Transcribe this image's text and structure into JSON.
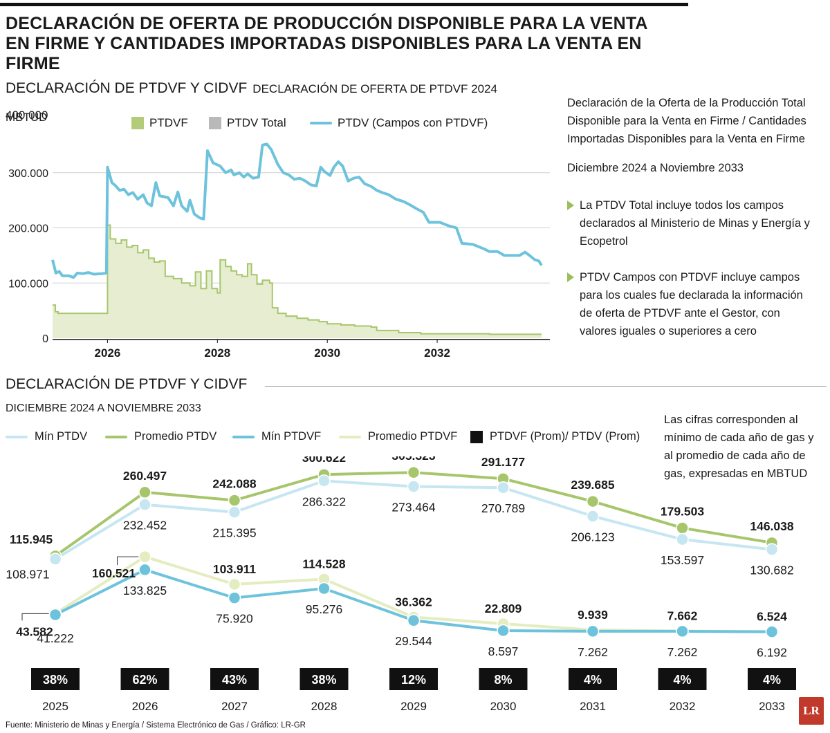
{
  "headline": {
    "line1": "DECLARACIÓN DE OFERTA DE PRODUCCIÓN DISPONIBLE PARA LA VENTA",
    "line2": "EN FIRME Y CANTIDADES IMPORTADAS DISPONIBLES PARA LA VENTA EN FIRME"
  },
  "section1": {
    "title": "DECLARACIÓN DE PTDVF Y CIDVF",
    "subtitle": "DECLARACIÓN DE OFERTA DE PTDVF 2024",
    "unit": "MBTUD",
    "legend": {
      "ptdvf": "PTDVF",
      "ptdv_total": "PTDV Total",
      "ptdv_campos": "PTDV (Campos con PTDVF)"
    }
  },
  "side": {
    "desc": "Declaración de la Oferta de la Producción Total Disponible para la Venta  en Firme / Cantidades Importadas Disponibles para la Venta en Firme",
    "period": "Diciembre 2024 a Noviembre 2033",
    "bullet1": "La PTDV Total incluye todos los campos declarados al Ministerio de Minas y Energía y Ecopetrol",
    "bullet2": "PTDV Campos con PTDVF incluye  campos para los cuales fue declarada la información de oferta de PTDVF ante el Gestor, con valores iguales o superiores a cero"
  },
  "section2": {
    "title": "DECLARACIÓN DE PTDVF Y CIDVF",
    "subtitle": "DICIEMBRE 2024 A NOVIEMBRE 2033",
    "legend": {
      "min_ptdv": "Mín PTDV",
      "prom_ptdv": "Promedio PTDV",
      "min_ptdvf": "Mín PTDVF",
      "prom_ptdvf": "Promedio PTDVF",
      "ratio": "PTDVF (Prom)/ PTDV (Prom)"
    },
    "note": "Las cifras corresponden al mínimo de cada año de gas y al promedio de cada año de gas, expresadas en MBTUD"
  },
  "footer": "Fuente: Ministerio de Minas y Energía / Sistema Electrónico de Gas / Gráfico: LR-GR",
  "logo": "LR",
  "colors": {
    "green": "#a7c66c",
    "green_fill": "#e6edd0",
    "blue": "#6ec3dc",
    "light_blue": "#c6e6f1",
    "light_green": "#e3edbf",
    "black": "#111111"
  },
  "chart_data": [
    {
      "type": "area",
      "title": "DECLARACIÓN DE OFERTA DE PTDVF 2024",
      "ylabel": "MBTUD",
      "ylim": [
        0,
        400000
      ],
      "yticks": [
        0,
        100000,
        200000,
        300000,
        400000
      ],
      "ytick_labels": [
        "0",
        "100.000",
        "200.000",
        "300.000",
        "400.000"
      ],
      "xlim": [
        2025.0,
        2033.9
      ],
      "xticks": [
        2026,
        2028,
        2030,
        2032
      ],
      "xtick_labels": [
        "2026",
        "2028",
        "2030",
        "2032"
      ],
      "series": [
        {
          "name": "PTDVF",
          "style": "step-area",
          "points": [
            [
              2025.0,
              60000
            ],
            [
              2025.05,
              48000
            ],
            [
              2025.1,
              45000
            ],
            [
              2025.95,
              45000
            ],
            [
              2026.0,
              205000
            ],
            [
              2026.05,
              180000
            ],
            [
              2026.15,
              172000
            ],
            [
              2026.25,
              178000
            ],
            [
              2026.35,
              165000
            ],
            [
              2026.45,
              168000
            ],
            [
              2026.55,
              155000
            ],
            [
              2026.65,
              160000
            ],
            [
              2026.75,
              145000
            ],
            [
              2026.85,
              138000
            ],
            [
              2026.95,
              140000
            ],
            [
              2027.05,
              112000
            ],
            [
              2027.2,
              108000
            ],
            [
              2027.35,
              100000
            ],
            [
              2027.5,
              95000
            ],
            [
              2027.6,
              120000
            ],
            [
              2027.7,
              90000
            ],
            [
              2027.8,
              122000
            ],
            [
              2027.9,
              90000
            ],
            [
              2028.0,
              82000
            ],
            [
              2028.05,
              142000
            ],
            [
              2028.15,
              130000
            ],
            [
              2028.25,
              122000
            ],
            [
              2028.35,
              115000
            ],
            [
              2028.45,
              112000
            ],
            [
              2028.55,
              135000
            ],
            [
              2028.62,
              115000
            ],
            [
              2028.72,
              98000
            ],
            [
              2028.82,
              105000
            ],
            [
              2028.95,
              100000
            ],
            [
              2029.0,
              55000
            ],
            [
              2029.1,
              45000
            ],
            [
              2029.25,
              40000
            ],
            [
              2029.45,
              36000
            ],
            [
              2029.65,
              33000
            ],
            [
              2029.85,
              30000
            ],
            [
              2030.0,
              26000
            ],
            [
              2030.25,
              24000
            ],
            [
              2030.5,
              22000
            ],
            [
              2030.8,
              20000
            ],
            [
              2030.9,
              14000
            ],
            [
              2031.3,
              10000
            ],
            [
              2031.6,
              10000
            ],
            [
              2031.7,
              8000
            ],
            [
              2032.5,
              8000
            ],
            [
              2032.95,
              7000
            ],
            [
              2033.9,
              7000
            ]
          ]
        },
        {
          "name": "PTDV (Campos con PTDVF)",
          "style": "line",
          "points": [
            [
              2025.0,
              142000
            ],
            [
              2025.06,
              118000
            ],
            [
              2025.12,
              121000
            ],
            [
              2025.18,
              113000
            ],
            [
              2025.3,
              113000
            ],
            [
              2025.38,
              110000
            ],
            [
              2025.45,
              118000
            ],
            [
              2025.55,
              117000
            ],
            [
              2025.65,
              119000
            ],
            [
              2025.75,
              116000
            ],
            [
              2025.9,
              117000
            ],
            [
              2025.98,
              118000
            ],
            [
              2026.0,
              310000
            ],
            [
              2026.08,
              282000
            ],
            [
              2026.15,
              276000
            ],
            [
              2026.22,
              268000
            ],
            [
              2026.3,
              270000
            ],
            [
              2026.38,
              260000
            ],
            [
              2026.46,
              264000
            ],
            [
              2026.55,
              252000
            ],
            [
              2026.65,
              260000
            ],
            [
              2026.72,
              245000
            ],
            [
              2026.8,
              240000
            ],
            [
              2026.88,
              282000
            ],
            [
              2026.95,
              258000
            ],
            [
              2027.1,
              255000
            ],
            [
              2027.2,
              240000
            ],
            [
              2027.28,
              265000
            ],
            [
              2027.35,
              240000
            ],
            [
              2027.45,
              230000
            ],
            [
              2027.5,
              250000
            ],
            [
              2027.58,
              225000
            ],
            [
              2027.68,
              218000
            ],
            [
              2027.75,
              216000
            ],
            [
              2027.82,
              340000
            ],
            [
              2027.92,
              318000
            ],
            [
              2028.05,
              312000
            ],
            [
              2028.15,
              300000
            ],
            [
              2028.25,
              305000
            ],
            [
              2028.3,
              296000
            ],
            [
              2028.4,
              300000
            ],
            [
              2028.48,
              292000
            ],
            [
              2028.55,
              298000
            ],
            [
              2028.65,
              290000
            ],
            [
              2028.75,
              292000
            ],
            [
              2028.82,
              350000
            ],
            [
              2028.9,
              352000
            ],
            [
              2028.98,
              342000
            ],
            [
              2029.1,
              315000
            ],
            [
              2029.2,
              300000
            ],
            [
              2029.3,
              296000
            ],
            [
              2029.4,
              288000
            ],
            [
              2029.5,
              290000
            ],
            [
              2029.6,
              285000
            ],
            [
              2029.7,
              278000
            ],
            [
              2029.8,
              276000
            ],
            [
              2029.88,
              310000
            ],
            [
              2029.95,
              302000
            ],
            [
              2030.05,
              295000
            ],
            [
              2030.12,
              310000
            ],
            [
              2030.2,
              320000
            ],
            [
              2030.28,
              312000
            ],
            [
              2030.38,
              285000
            ],
            [
              2030.48,
              290000
            ],
            [
              2030.58,
              292000
            ],
            [
              2030.68,
              280000
            ],
            [
              2030.8,
              275000
            ],
            [
              2030.9,
              268000
            ],
            [
              2031.0,
              264000
            ],
            [
              2031.12,
              260000
            ],
            [
              2031.25,
              252000
            ],
            [
              2031.38,
              248000
            ],
            [
              2031.5,
              242000
            ],
            [
              2031.62,
              235000
            ],
            [
              2031.75,
              228000
            ],
            [
              2031.85,
              210000
            ],
            [
              2032.05,
              210000
            ],
            [
              2032.2,
              204000
            ],
            [
              2032.35,
              200000
            ],
            [
              2032.45,
              172000
            ],
            [
              2032.65,
              170000
            ],
            [
              2032.85,
              162000
            ],
            [
              2032.95,
              157000
            ],
            [
              2033.1,
              157000
            ],
            [
              2033.22,
              150000
            ],
            [
              2033.35,
              150000
            ],
            [
              2033.5,
              150000
            ],
            [
              2033.6,
              156000
            ],
            [
              2033.68,
              150000
            ],
            [
              2033.78,
              142000
            ],
            [
              2033.85,
              140000
            ],
            [
              2033.9,
              132000
            ]
          ]
        }
      ]
    },
    {
      "type": "line",
      "title": "DECLARACIÓN DE PTDVF Y CIDVF",
      "categories": [
        "2025",
        "2026",
        "2027",
        "2028",
        "2029",
        "2030",
        "2031",
        "2032",
        "2033"
      ],
      "series": [
        {
          "name": "Mín PTDV",
          "values": [
            108971,
            232452,
            215395,
            286322,
            273464,
            270789,
            206123,
            153597,
            130682
          ],
          "labels": [
            "108.971",
            "232.452",
            "215.395",
            "286.322",
            "273.464",
            "270.789",
            "206.123",
            "153.597",
            "130.682"
          ]
        },
        {
          "name": "Promedio PTDV",
          "values": [
            115945,
            260497,
            242088,
            300622,
            305323,
            291177,
            239685,
            179503,
            146038
          ],
          "labels": [
            "115.945",
            "260.497",
            "242.088",
            "300.622",
            "305.323",
            "291.177",
            "239.685",
            "179.503",
            "146.038"
          ]
        },
        {
          "name": "Mín PTDVF",
          "values": [
            41222,
            133825,
            75920,
            95276,
            29544,
            8597,
            7262,
            7262,
            6192
          ],
          "labels": [
            "41.222",
            "133.825",
            "75.920",
            "95.276",
            "29.544",
            "8.597",
            "7.262",
            "7.262",
            "6.192"
          ]
        },
        {
          "name": "Promedio PTDVF",
          "values": [
            43582,
            160521,
            103911,
            114528,
            36362,
            22809,
            9939,
            7662,
            6524
          ],
          "labels": [
            "43.582",
            "160.521",
            "103.911",
            "114.528",
            "36.362",
            "22.809",
            "9.939",
            "7.662",
            "6.524"
          ]
        },
        {
          "name": "PTDVF (Prom)/ PTDV (Prom)",
          "values": [
            38,
            62,
            43,
            38,
            12,
            8,
            4,
            4,
            4
          ],
          "labels": [
            "38%",
            "62%",
            "43%",
            "38%",
            "12%",
            "8%",
            "4%",
            "4%",
            "4%"
          ]
        }
      ]
    }
  ]
}
